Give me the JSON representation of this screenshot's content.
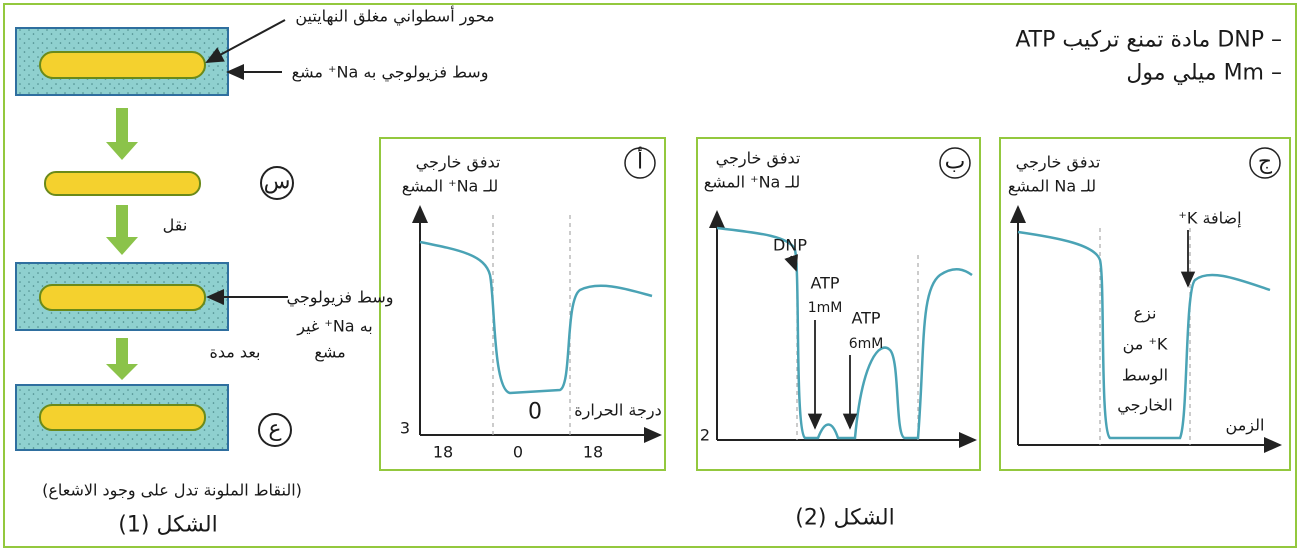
{
  "notes": [
    "– DNP مادة تمنع تركيب ATP",
    "– Mm ميلي مول"
  ],
  "figure1": {
    "labels": {
      "rod": "محور أسطواني مغلق النهايتين",
      "radioactive_medium": "وسط فزيولوجي به Na⁺ مشع",
      "nonradioactive_medium": [
        "وسط فزيولوجي",
        "به Na⁺ غير",
        "مشع"
      ]
    },
    "steps": {
      "s": "س",
      "transfer": "نقل",
      "after_time": "بعد مدة",
      "a": "ع"
    },
    "note": "(النقاط الملونة تدل على وجود الاشعاع)",
    "caption": "الشكل (1)"
  },
  "figure2": {
    "caption": "الشكل (2)",
    "panels": [
      {
        "letter": "أ",
        "y_label": [
          "تدفق خارجي",
          "للـ Na⁺ المشع"
        ],
        "y_tick": "3",
        "x_label": "درجة الحرارة",
        "x_ticks": [
          "18",
          "0",
          "18"
        ],
        "annotations": [
          "0"
        ]
      },
      {
        "letter": "ب",
        "y_label": [
          "تدفق خارجي",
          "للـ Na⁺ المشع"
        ],
        "y_tick": "2",
        "annotations": [
          "DNP",
          "ATP",
          "1mM",
          "ATP",
          "6mM"
        ]
      },
      {
        "letter": "ج",
        "y_label": [
          "تدفق خارجي",
          "للـ Na المشع"
        ],
        "x_label": "الزمن",
        "annotations": [
          "إضافة K⁺",
          "نزع",
          "K⁺ من",
          "الوسط",
          "الخارجي"
        ]
      }
    ]
  }
}
